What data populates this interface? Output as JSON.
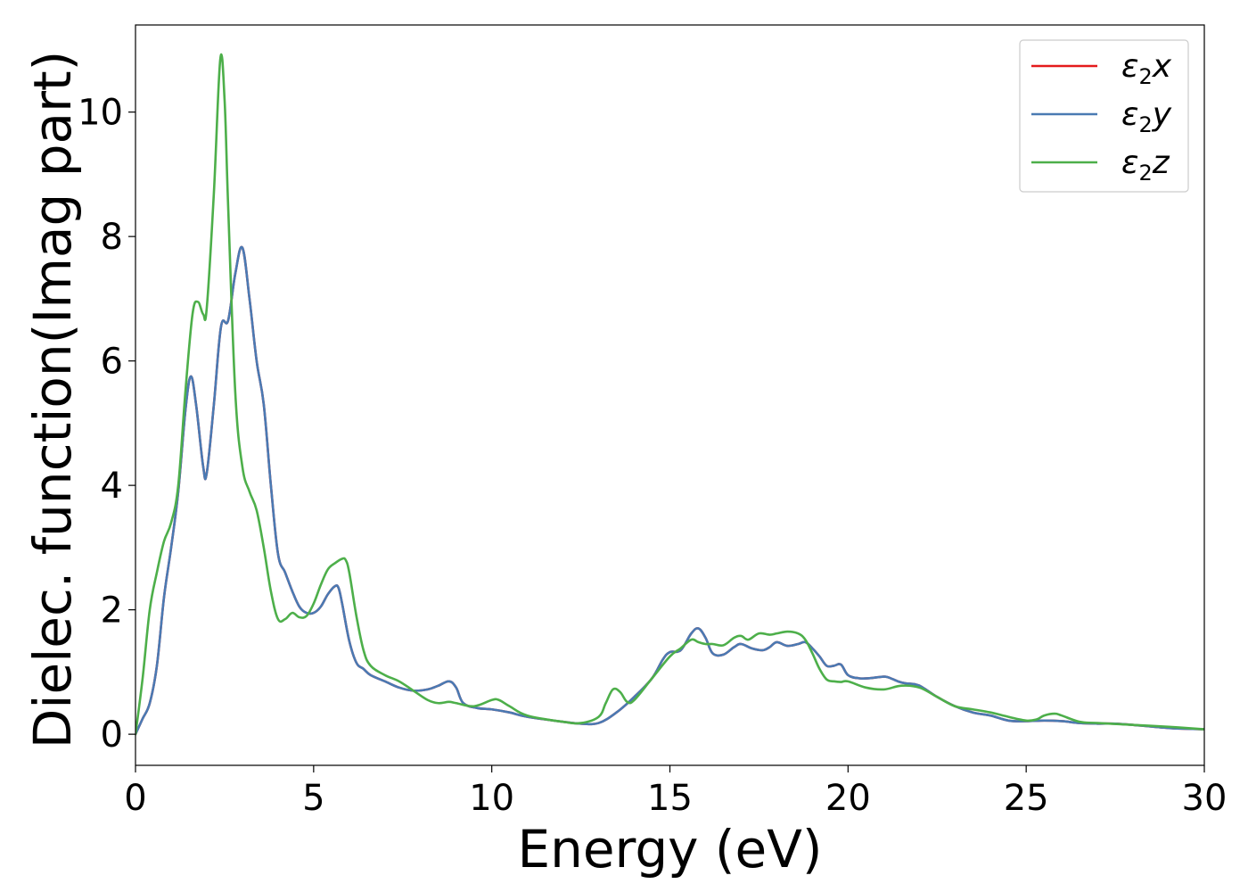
{
  "chart_data": {
    "type": "line",
    "xlabel": "Energy (eV)",
    "ylabel": "Dielec. function(Imag part)",
    "xlim": [
      0,
      30
    ],
    "ylim": [
      -0.5,
      11.4
    ],
    "xticks": [
      0,
      5,
      10,
      15,
      20,
      25,
      30
    ],
    "yticks": [
      0,
      2,
      4,
      6,
      8,
      10
    ],
    "grid": false,
    "legend_position": "top-right",
    "series": [
      {
        "name": "ε2x",
        "name_base": "ε",
        "name_sub": "2",
        "name_var": "x",
        "color": "#e41a1c",
        "x": [
          0,
          0.2,
          0.4,
          0.6,
          0.8,
          1.0,
          1.2,
          1.4,
          1.55,
          1.7,
          1.9,
          2.0,
          2.2,
          2.4,
          2.6,
          2.8,
          3.0,
          3.2,
          3.4,
          3.6,
          3.8,
          4.0,
          4.2,
          4.4,
          4.6,
          4.8,
          5.0,
          5.2,
          5.4,
          5.6,
          5.7,
          5.8,
          6.0,
          6.2,
          6.4,
          6.6,
          7.0,
          7.4,
          7.8,
          8.2,
          8.5,
          8.8,
          9.0,
          9.2,
          9.6,
          10.0,
          10.5,
          11.0,
          12.0,
          12.5,
          13.0,
          13.5,
          14.0,
          14.5,
          14.8,
          15.0,
          15.3,
          15.6,
          15.8,
          16.0,
          16.2,
          16.5,
          16.8,
          17.0,
          17.3,
          17.6,
          17.8,
          18.0,
          18.3,
          18.6,
          18.8,
          19.0,
          19.2,
          19.4,
          19.6,
          19.8,
          20.0,
          20.3,
          20.6,
          20.9,
          21.1,
          21.4,
          21.6,
          21.9,
          22.1,
          22.5,
          23.0,
          23.5,
          24.0,
          24.5,
          25.0,
          25.5,
          26.0,
          26.5,
          27.0,
          27.5,
          28.0,
          29.0,
          30.0
        ],
        "values": [
          0,
          0.25,
          0.5,
          1.1,
          2.2,
          3.0,
          3.9,
          5.2,
          5.75,
          5.3,
          4.3,
          4.2,
          5.3,
          6.55,
          6.65,
          7.4,
          7.82,
          7.0,
          6.0,
          5.3,
          4.0,
          2.9,
          2.6,
          2.3,
          2.05,
          1.95,
          1.95,
          2.05,
          2.25,
          2.38,
          2.35,
          2.1,
          1.5,
          1.15,
          1.05,
          0.95,
          0.85,
          0.75,
          0.7,
          0.72,
          0.78,
          0.85,
          0.75,
          0.5,
          0.42,
          0.4,
          0.35,
          0.28,
          0.2,
          0.17,
          0.18,
          0.35,
          0.6,
          0.9,
          1.2,
          1.32,
          1.35,
          1.62,
          1.7,
          1.55,
          1.3,
          1.28,
          1.4,
          1.45,
          1.38,
          1.35,
          1.4,
          1.48,
          1.42,
          1.45,
          1.48,
          1.38,
          1.25,
          1.1,
          1.1,
          1.12,
          0.95,
          0.9,
          0.9,
          0.92,
          0.92,
          0.85,
          0.82,
          0.8,
          0.75,
          0.6,
          0.45,
          0.35,
          0.3,
          0.22,
          0.21,
          0.22,
          0.21,
          0.18,
          0.17,
          0.17,
          0.15,
          0.1,
          0.08
        ]
      },
      {
        "name": "ε2y",
        "name_base": "ε",
        "name_sub": "2",
        "name_var": "y",
        "color": "#4a7ab3",
        "x": [
          0,
          0.2,
          0.4,
          0.6,
          0.8,
          1.0,
          1.2,
          1.4,
          1.55,
          1.7,
          1.9,
          2.0,
          2.2,
          2.4,
          2.6,
          2.8,
          3.0,
          3.2,
          3.4,
          3.6,
          3.8,
          4.0,
          4.2,
          4.4,
          4.6,
          4.8,
          5.0,
          5.2,
          5.4,
          5.6,
          5.7,
          5.8,
          6.0,
          6.2,
          6.4,
          6.6,
          7.0,
          7.4,
          7.8,
          8.2,
          8.5,
          8.8,
          9.0,
          9.2,
          9.6,
          10.0,
          10.5,
          11.0,
          12.0,
          12.5,
          13.0,
          13.5,
          14.0,
          14.5,
          14.8,
          15.0,
          15.3,
          15.6,
          15.8,
          16.0,
          16.2,
          16.5,
          16.8,
          17.0,
          17.3,
          17.6,
          17.8,
          18.0,
          18.3,
          18.6,
          18.8,
          19.0,
          19.2,
          19.4,
          19.6,
          19.8,
          20.0,
          20.3,
          20.6,
          20.9,
          21.1,
          21.4,
          21.6,
          21.9,
          22.1,
          22.5,
          23.0,
          23.5,
          24.0,
          24.5,
          25.0,
          25.5,
          26.0,
          26.5,
          27.0,
          27.5,
          28.0,
          29.0,
          30.0
        ],
        "values": [
          0,
          0.25,
          0.5,
          1.1,
          2.2,
          3.0,
          3.9,
          5.2,
          5.75,
          5.3,
          4.3,
          4.2,
          5.3,
          6.55,
          6.65,
          7.4,
          7.82,
          7.0,
          6.0,
          5.3,
          4.0,
          2.9,
          2.6,
          2.3,
          2.05,
          1.95,
          1.95,
          2.05,
          2.25,
          2.38,
          2.35,
          2.1,
          1.5,
          1.15,
          1.05,
          0.95,
          0.85,
          0.75,
          0.7,
          0.72,
          0.78,
          0.85,
          0.75,
          0.5,
          0.42,
          0.4,
          0.35,
          0.28,
          0.2,
          0.17,
          0.18,
          0.35,
          0.6,
          0.9,
          1.2,
          1.32,
          1.35,
          1.62,
          1.7,
          1.55,
          1.3,
          1.28,
          1.4,
          1.45,
          1.38,
          1.35,
          1.4,
          1.48,
          1.42,
          1.45,
          1.48,
          1.38,
          1.25,
          1.1,
          1.1,
          1.12,
          0.95,
          0.9,
          0.9,
          0.92,
          0.92,
          0.85,
          0.82,
          0.8,
          0.75,
          0.6,
          0.45,
          0.35,
          0.3,
          0.22,
          0.21,
          0.22,
          0.21,
          0.18,
          0.17,
          0.17,
          0.15,
          0.1,
          0.08
        ]
      },
      {
        "name": "ε2z",
        "name_base": "ε",
        "name_sub": "2",
        "name_var": "z",
        "color": "#4daf4a",
        "x": [
          0,
          0.2,
          0.4,
          0.6,
          0.8,
          1.0,
          1.2,
          1.4,
          1.6,
          1.75,
          1.9,
          2.0,
          2.2,
          2.38,
          2.5,
          2.6,
          2.8,
          3.0,
          3.2,
          3.4,
          3.6,
          3.8,
          4.0,
          4.2,
          4.4,
          4.6,
          4.8,
          5.0,
          5.2,
          5.4,
          5.6,
          5.8,
          5.9,
          6.0,
          6.2,
          6.4,
          6.6,
          7.0,
          7.4,
          7.8,
          8.2,
          8.5,
          8.8,
          9.0,
          9.5,
          10.0,
          10.2,
          10.5,
          11.0,
          12.0,
          12.5,
          13.0,
          13.2,
          13.4,
          13.6,
          13.8,
          14.0,
          14.5,
          15.0,
          15.3,
          15.6,
          15.8,
          16.0,
          16.2,
          16.5,
          16.8,
          17.0,
          17.2,
          17.5,
          17.8,
          18.0,
          18.3,
          18.6,
          18.8,
          19.0,
          19.2,
          19.4,
          19.6,
          19.8,
          20.0,
          20.5,
          21.0,
          21.5,
          22.0,
          22.5,
          23.0,
          23.5,
          24.0,
          24.5,
          25.0,
          25.3,
          25.5,
          25.8,
          26.0,
          26.5,
          27.0,
          28.0,
          29.0,
          30.0
        ],
        "values": [
          0,
          0.9,
          2.0,
          2.6,
          3.1,
          3.4,
          4.0,
          5.5,
          6.75,
          6.95,
          6.75,
          6.85,
          8.7,
          10.85,
          10.2,
          8.5,
          5.5,
          4.3,
          3.9,
          3.6,
          3.0,
          2.3,
          1.85,
          1.85,
          1.95,
          1.88,
          1.9,
          2.1,
          2.4,
          2.65,
          2.75,
          2.82,
          2.8,
          2.6,
          1.9,
          1.35,
          1.1,
          0.95,
          0.85,
          0.7,
          0.55,
          0.5,
          0.52,
          0.5,
          0.45,
          0.55,
          0.55,
          0.45,
          0.3,
          0.2,
          0.18,
          0.28,
          0.5,
          0.72,
          0.68,
          0.52,
          0.55,
          0.9,
          1.25,
          1.38,
          1.52,
          1.48,
          1.45,
          1.45,
          1.43,
          1.55,
          1.58,
          1.52,
          1.62,
          1.6,
          1.62,
          1.65,
          1.62,
          1.52,
          1.3,
          1.05,
          0.88,
          0.85,
          0.84,
          0.85,
          0.75,
          0.72,
          0.78,
          0.75,
          0.6,
          0.45,
          0.4,
          0.35,
          0.28,
          0.22,
          0.24,
          0.3,
          0.33,
          0.3,
          0.2,
          0.18,
          0.15,
          0.12,
          0.08
        ]
      }
    ]
  }
}
